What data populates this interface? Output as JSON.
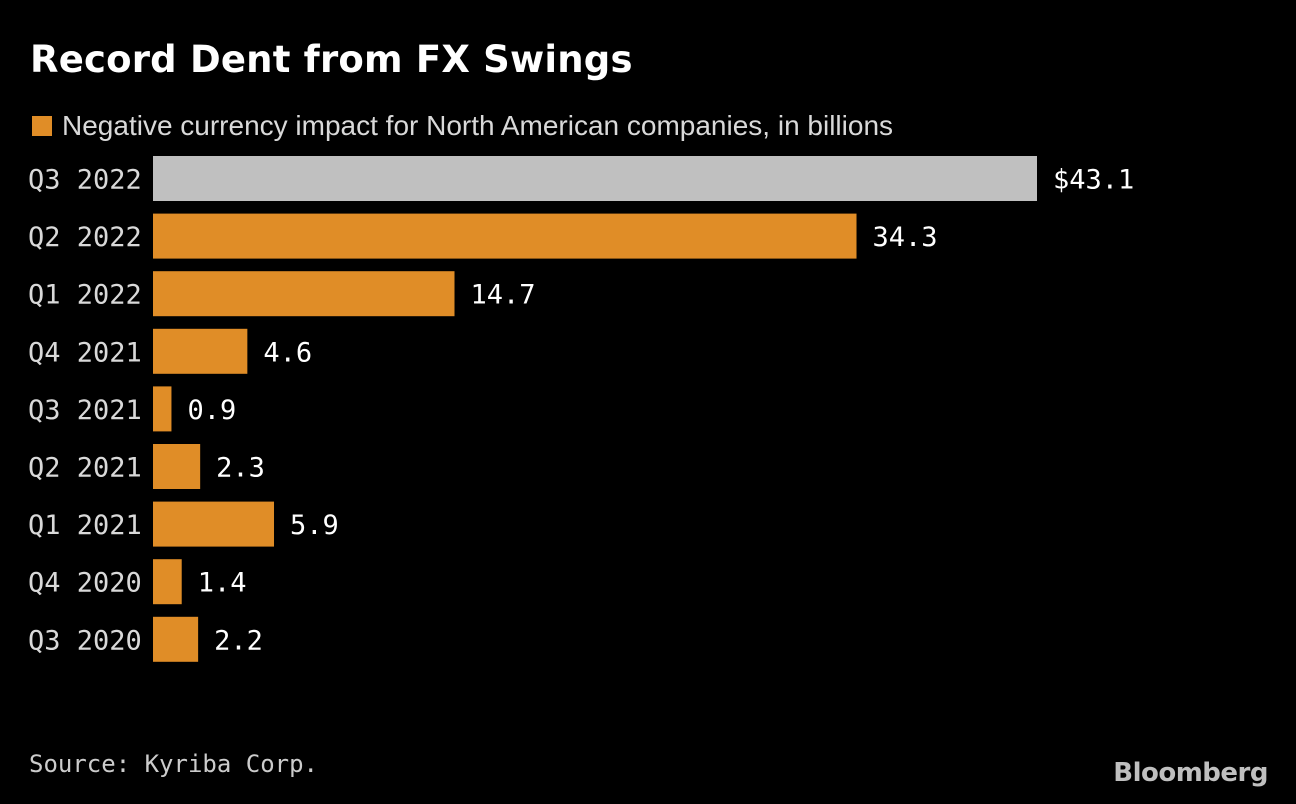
{
  "title": "Record Dent from FX Swings",
  "legend": {
    "label": "Negative currency impact for North American companies, in billions",
    "color": "#e08d27"
  },
  "source": "Source: Kyriba Corp.",
  "brand": "Bloomberg",
  "colors": {
    "bar": "#e08d27",
    "highlight_bar": "#c0c0c0",
    "background": "#000000",
    "text": "#ffffff"
  },
  "chart_data": {
    "type": "bar",
    "orientation": "horizontal",
    "categories": [
      "Q3 2022",
      "Q2 2022",
      "Q1 2022",
      "Q4 2021",
      "Q3 2021",
      "Q2 2021",
      "Q1 2021",
      "Q4 2020",
      "Q3 2020"
    ],
    "values": [
      43.1,
      34.3,
      14.7,
      4.6,
      0.9,
      2.3,
      5.9,
      1.4,
      2.2
    ],
    "value_labels": [
      "$43.1",
      "34.3",
      "14.7",
      "4.6",
      "0.9",
      "2.3",
      "5.9",
      "1.4",
      "2.2"
    ],
    "highlighted": [
      "Q3 2022"
    ],
    "xlim": [
      0,
      43.1
    ],
    "grid": false,
    "axes_visible": false
  }
}
